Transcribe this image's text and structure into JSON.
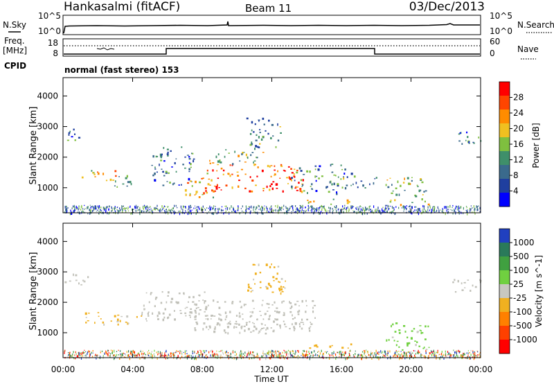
{
  "header": {
    "station": "Hankasalmi (fitACF)",
    "beam": "Beam 11",
    "date": "03/Dec/2013"
  },
  "noise_panel": {
    "left_label": "N.Sky",
    "left_ticks": [
      "10^5",
      "10^0"
    ],
    "right_label": "N.Search",
    "right_ticks": [
      "10^5",
      "10^0"
    ]
  },
  "freq_panel": {
    "left_label_1": "Freq.",
    "left_label_2": "[MHz]",
    "left_ticks": [
      "18",
      "8"
    ],
    "right_label": "Nave",
    "right_ticks": [
      "60",
      "0"
    ],
    "cpid_label": "CPID",
    "cpid_text": "normal (fast stereo) 153"
  },
  "colors": {
    "power_scale": [
      "#0000ff",
      "#1f3f9f",
      "#3a6a8c",
      "#3f8f6a",
      "#7fbf3f",
      "#f0c020",
      "#ff8c00",
      "#ff4500",
      "#ff0000"
    ],
    "velocity_scale": [
      "#2040c0",
      "#2a7a5a",
      "#40a040",
      "#70d040",
      "#c8c8c0",
      "#f0b020",
      "#ff8000",
      "#ff4000",
      "#ff0000"
    ],
    "ground_scatter": "#c0c0b8"
  },
  "chart_data": [
    {
      "type": "heatmap",
      "panel": "power",
      "ylabel": "Slant Range [km]",
      "xlim": [
        "00:00",
        "24:00"
      ],
      "ylim": [
        180,
        4600
      ],
      "yticks": [
        "1000",
        "2000",
        "3000",
        "4000"
      ],
      "colorbar": {
        "label": "Power [dB]",
        "ticks": [
          "28",
          "24",
          "20",
          "16",
          "12",
          "8",
          "4"
        ],
        "range": [
          0,
          30
        ]
      },
      "echo_regions": [
        {
          "t0": 0.0,
          "t1": 1.3,
          "r0": 2550,
          "r1": 2950,
          "value": 9
        },
        {
          "t0": 1.0,
          "t1": 1.8,
          "r0": 1350,
          "r1": 1700,
          "value": 18
        },
        {
          "t0": 1.8,
          "t1": 3.0,
          "r0": 1250,
          "r1": 1600,
          "value": 20
        },
        {
          "t0": 2.8,
          "t1": 4.5,
          "r0": 1050,
          "r1": 1450,
          "value": 13
        },
        {
          "t0": 5.0,
          "t1": 7.5,
          "r0": 1100,
          "r1": 2400,
          "value": 9
        },
        {
          "t0": 7.0,
          "t1": 8.6,
          "r0": 700,
          "r1": 1500,
          "value": 20
        },
        {
          "t0": 8.0,
          "t1": 13.8,
          "r0": 900,
          "r1": 1800,
          "value": 25
        },
        {
          "t0": 8.3,
          "t1": 11.5,
          "r0": 1800,
          "r1": 2300,
          "value": 15
        },
        {
          "t0": 10.5,
          "t1": 12.6,
          "r0": 2300,
          "r1": 3300,
          "value": 11
        },
        {
          "t0": 13.0,
          "t1": 16.2,
          "r0": 800,
          "r1": 1800,
          "value": 10
        },
        {
          "t0": 14.0,
          "t1": 17.0,
          "r0": 480,
          "r1": 650,
          "value": 16
        },
        {
          "t0": 16.0,
          "t1": 18.0,
          "r0": 1000,
          "r1": 1500,
          "value": 10
        },
        {
          "t0": 18.5,
          "t1": 21.0,
          "r0": 450,
          "r1": 1350,
          "value": 14
        },
        {
          "t0": 22.2,
          "t1": 24.0,
          "r0": 2350,
          "r1": 2850,
          "value": 8
        }
      ]
    },
    {
      "type": "heatmap",
      "panel": "velocity",
      "xlabel": "Time UT",
      "ylabel": "Slant Range [km]",
      "xlim": [
        "00:00",
        "24:00"
      ],
      "ylim": [
        180,
        4600
      ],
      "xticks": [
        "00:00",
        "04:00",
        "08:00",
        "12:00",
        "16:00",
        "20:00",
        "00:00"
      ],
      "yticks": [
        "1000",
        "2000",
        "3000",
        "4000"
      ],
      "colorbar": {
        "label": "Velocity [m s^-1]",
        "ticks": [
          "1000",
          "500",
          "100",
          "25",
          "-25",
          "-100",
          "-500",
          "-1000"
        ],
        "range": [
          -1000,
          1000
        ]
      },
      "echo_regions": [
        {
          "t0": 0.0,
          "t1": 1.4,
          "r0": 2550,
          "r1": 2950,
          "value": 0
        },
        {
          "t0": 1.0,
          "t1": 4.5,
          "r0": 1300,
          "r1": 1700,
          "value": -150
        },
        {
          "t0": 4.5,
          "t1": 8.5,
          "r0": 1400,
          "r1": 2400,
          "value": 0
        },
        {
          "t0": 7.5,
          "t1": 14.5,
          "r0": 1000,
          "r1": 2100,
          "value": 0
        },
        {
          "t0": 8.0,
          "t1": 12.8,
          "r0": 1000,
          "r1": 1700,
          "value": 0
        },
        {
          "t0": 10.5,
          "t1": 12.8,
          "r0": 2300,
          "r1": 3300,
          "value": -150
        },
        {
          "t0": 14.0,
          "t1": 17.0,
          "r0": 480,
          "r1": 650,
          "value": -250
        },
        {
          "t0": 18.5,
          "t1": 21.0,
          "r0": 450,
          "r1": 1350,
          "value": 150
        },
        {
          "t0": 22.2,
          "t1": 24.0,
          "r0": 2350,
          "r1": 2850,
          "value": 0
        }
      ]
    }
  ]
}
